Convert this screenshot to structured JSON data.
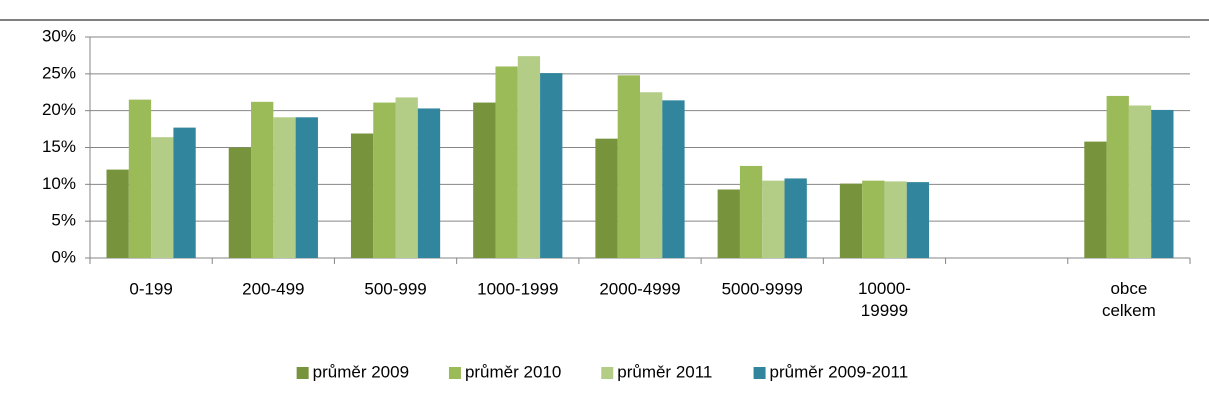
{
  "chart_data": {
    "type": "bar",
    "categories": [
      "0-199",
      "200-499",
      "500-999",
      "1000-1999",
      "2000-4999",
      "5000-9999",
      "10000-19999",
      null,
      "obce celkem"
    ],
    "series": [
      {
        "name": "průměr 2009",
        "color": "#77933c",
        "values": [
          12,
          15,
          16.9,
          21.1,
          16.2,
          9.3,
          10.1,
          null,
          15.8
        ]
      },
      {
        "name": "průměr 2010",
        "color": "#9bbb59",
        "values": [
          21.5,
          21.2,
          21.1,
          26,
          24.8,
          12.5,
          10.5,
          null,
          22
        ]
      },
      {
        "name": "průměr 2011",
        "color": "#b3cc86",
        "values": [
          16.4,
          19.1,
          21.8,
          27.4,
          22.5,
          10.5,
          10.4,
          null,
          20.7
        ]
      },
      {
        "name": "průměr 2009-2011",
        "color": "#31859c",
        "values": [
          17.7,
          19.1,
          20.3,
          25.1,
          21.4,
          10.8,
          10.3,
          null,
          20.1
        ]
      }
    ],
    "ylim": [
      0,
      30
    ],
    "yticks": [
      {
        "value": 0,
        "label": "0%"
      },
      {
        "value": 5,
        "label": "5%"
      },
      {
        "value": 10,
        "label": "10%"
      },
      {
        "value": 15,
        "label": "15%"
      },
      {
        "value": 20,
        "label": "20%"
      },
      {
        "value": 25,
        "label": "25%"
      },
      {
        "value": 30,
        "label": "30%"
      }
    ],
    "grid": true,
    "legend": "bottom"
  }
}
